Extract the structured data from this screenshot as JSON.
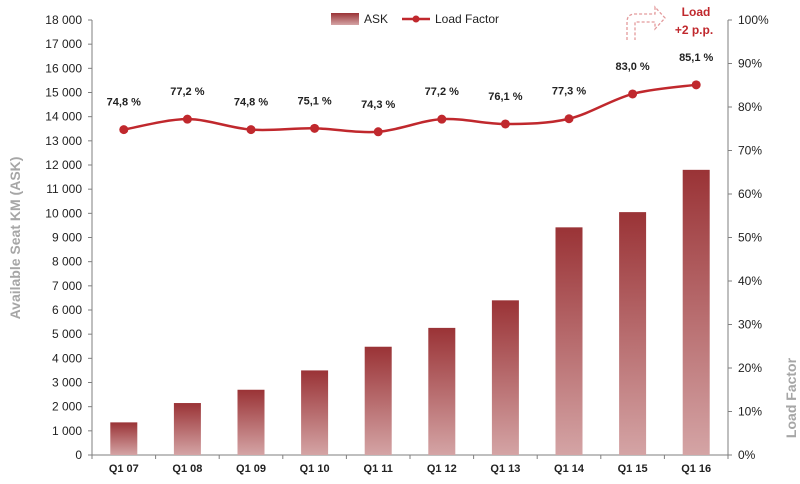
{
  "chart_data": {
    "type": "bar",
    "categories": [
      "Q1 07",
      "Q1 08",
      "Q1 09",
      "Q1 10",
      "Q1 11",
      "Q1 12",
      "Q1 13",
      "Q1 14",
      "Q1 15",
      "Q1 16"
    ],
    "series": [
      {
        "name": "ASK",
        "type": "bar",
        "axis": "left",
        "values": [
          1350,
          2150,
          2700,
          3500,
          4480,
          5260,
          6400,
          9420,
          10050,
          11800
        ]
      },
      {
        "name": "Load Factor",
        "type": "line",
        "axis": "right",
        "values": [
          74.8,
          77.2,
          74.8,
          75.1,
          74.3,
          77.2,
          76.1,
          77.3,
          83.0,
          85.1
        ],
        "labels": [
          "74,8 %",
          "77,2 %",
          "74,8 %",
          "75,1 %",
          "74,3 %",
          "77,2 %",
          "76,1 %",
          "77,3 %",
          "83,0 %",
          "85,1 %"
        ]
      }
    ],
    "ylabel": "Available Seat KM (ASK)",
    "y2label": "Load Factor",
    "ylim": [
      0,
      18000
    ],
    "y2lim": [
      0,
      100
    ],
    "yticks": [
      0,
      1000,
      2000,
      3000,
      4000,
      5000,
      6000,
      7000,
      8000,
      9000,
      10000,
      11000,
      12000,
      13000,
      14000,
      15000,
      16000,
      17000,
      18000
    ],
    "ytick_labels": [
      "0",
      "1 000",
      "2 000",
      "3 000",
      "4 000",
      "5 000",
      "6 000",
      "7 000",
      "8 000",
      "9 000",
      "10 000",
      "11 000",
      "12 000",
      "13 000",
      "14 000",
      "15 000",
      "16 000",
      "17 000",
      "18 000"
    ],
    "y2ticks": [
      0,
      10,
      20,
      30,
      40,
      50,
      60,
      70,
      80,
      90,
      100
    ],
    "y2tick_labels": [
      "0%",
      "10%",
      "20%",
      "30%",
      "40%",
      "50%",
      "60%",
      "70%",
      "80%",
      "90%",
      "100%"
    ],
    "legend_position": "top-center",
    "grid": false,
    "annotation": {
      "line1": "Load",
      "line2": "+2 p.p."
    },
    "colors": {
      "bar_dark": "#9a3336",
      "bar_light": "#d4a4a5",
      "line": "#c0282d",
      "axis_title": "#a6a6a6",
      "annotation": "#c0282d"
    }
  }
}
